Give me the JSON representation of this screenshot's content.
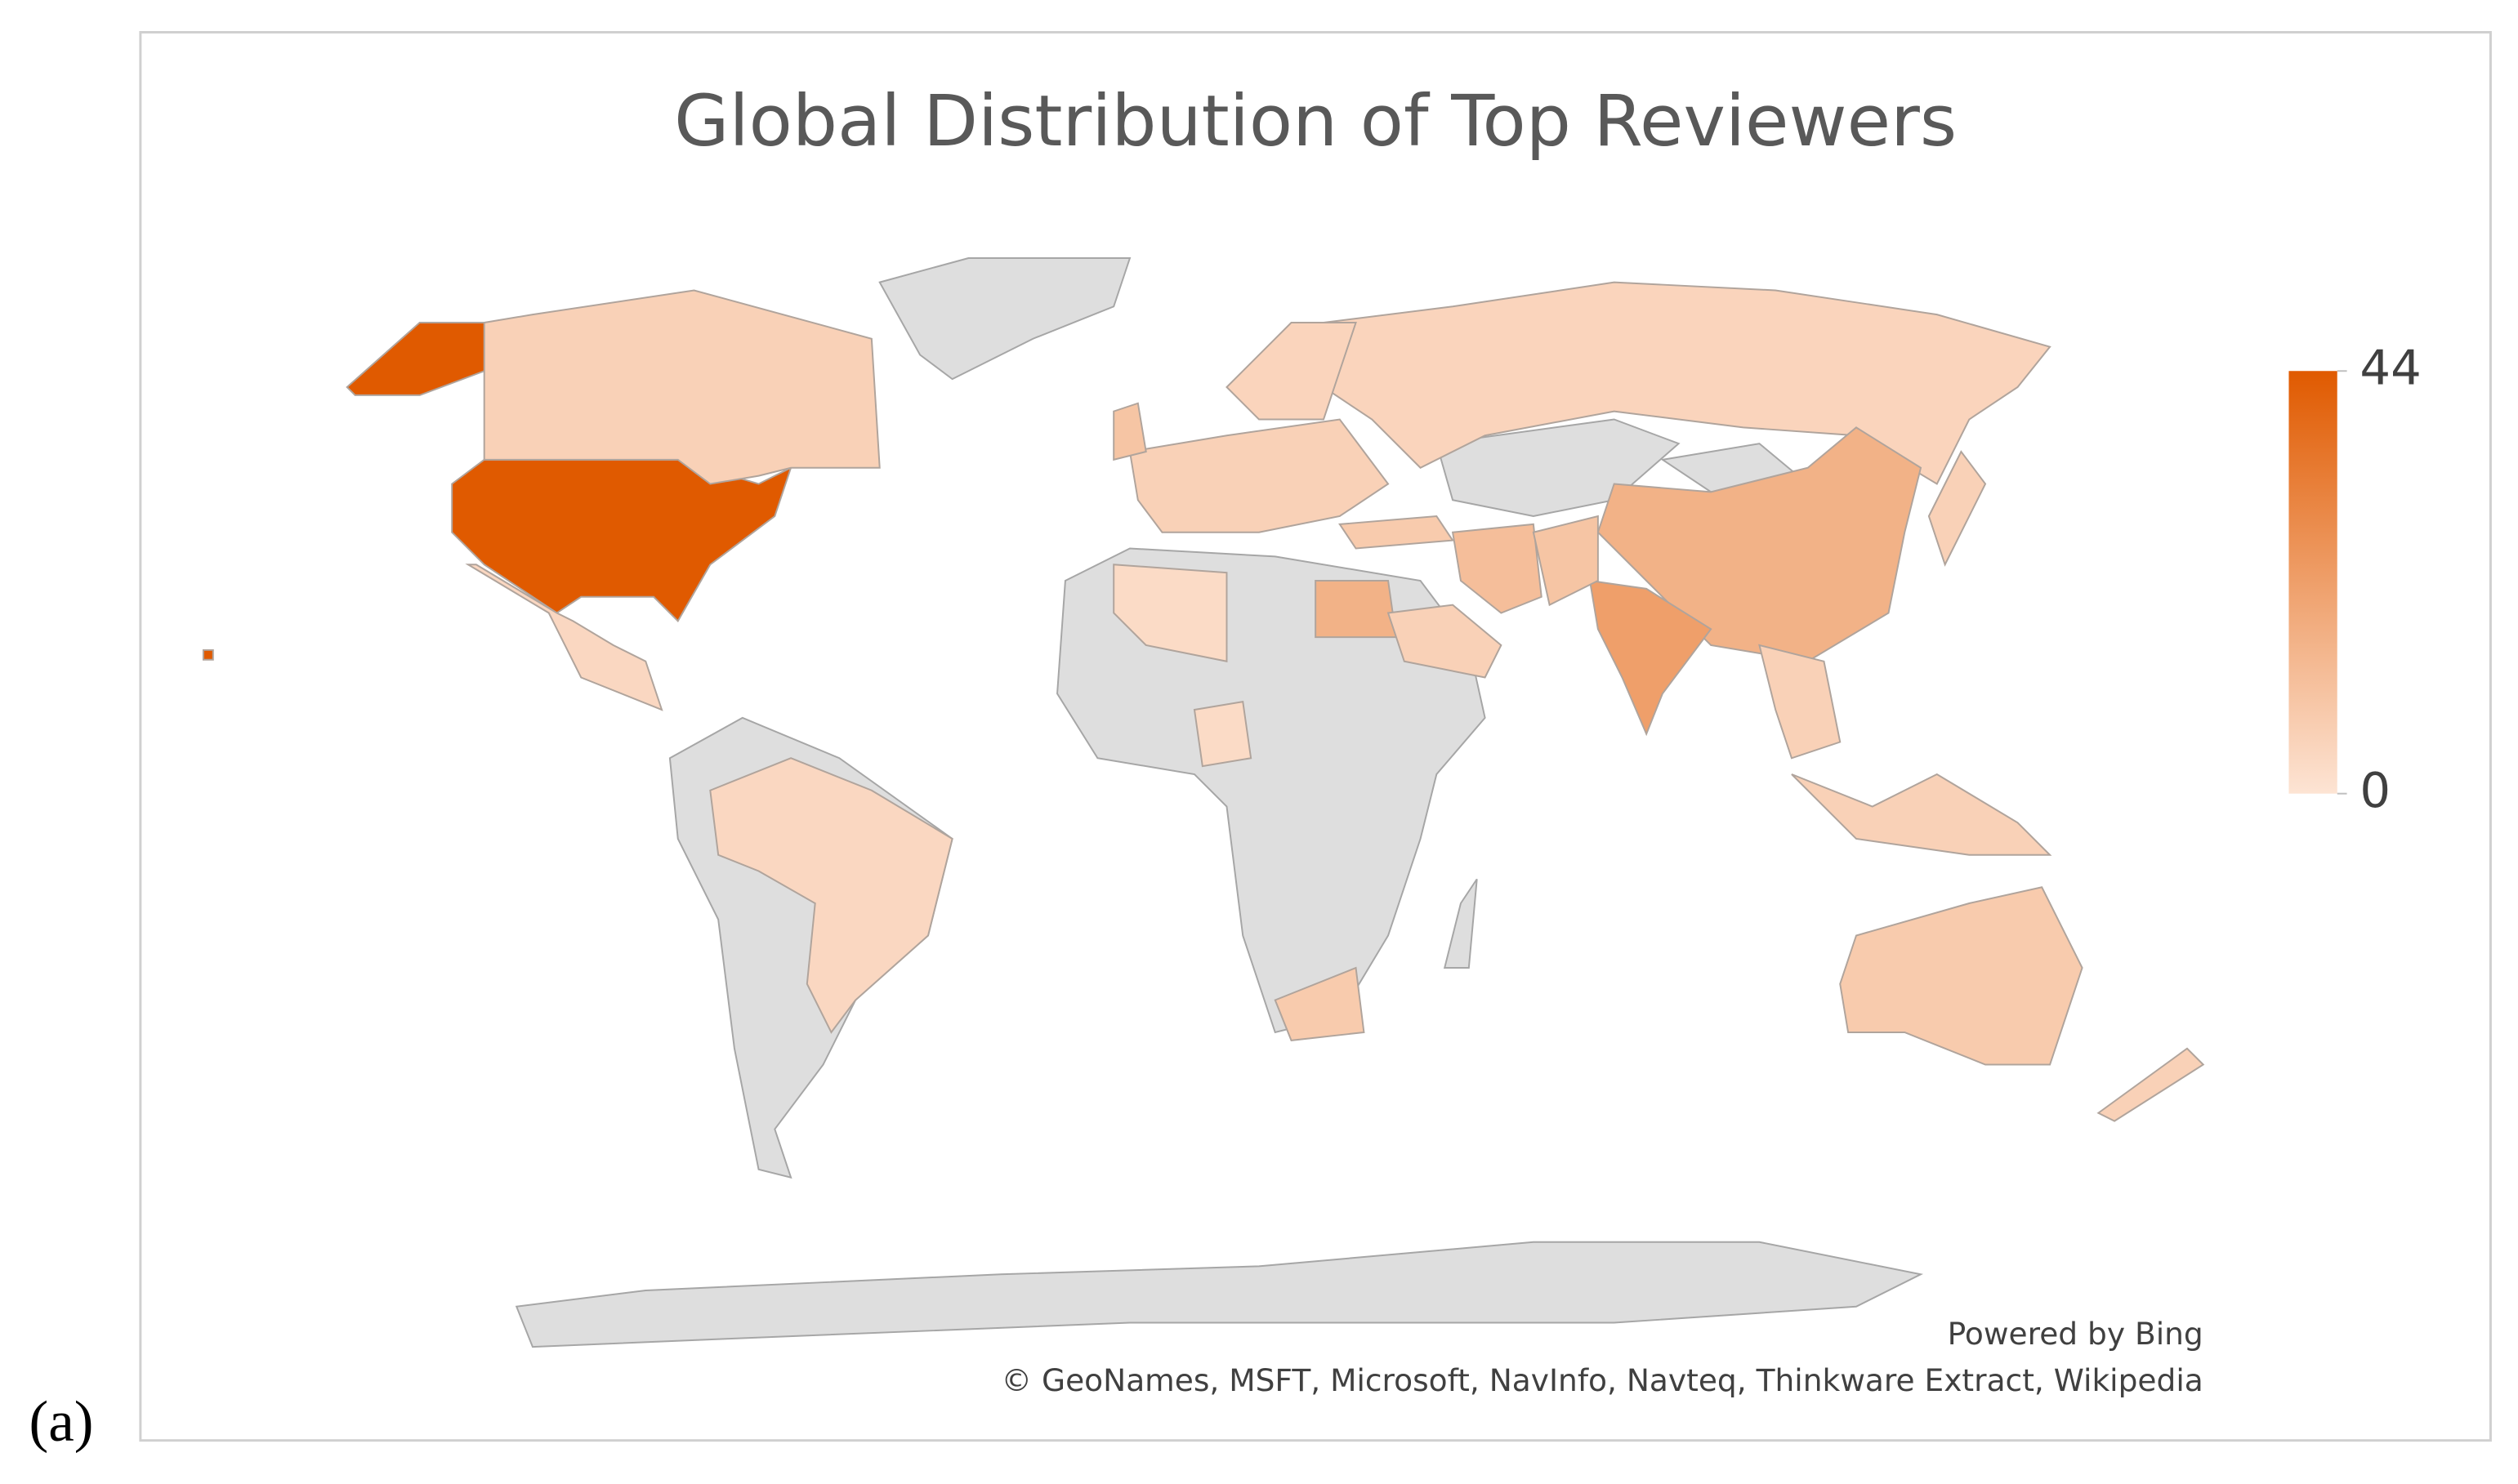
{
  "chart_data": {
    "type": "choropleth",
    "title": "Global Distribution of Top Reviewers",
    "values": [
      44,
      6,
      4,
      4,
      5,
      16,
      22,
      16,
      12,
      8,
      6,
      5,
      8,
      6,
      8,
      3,
      6,
      6,
      6,
      6,
      3,
      10,
      10
    ],
    "scale": {
      "min": 0,
      "max": 44,
      "ticks": [
        0,
        44
      ],
      "colors": [
        "#fde4d4",
        "#e05a00"
      ]
    },
    "credits": [
      "Powered by Bing",
      "© GeoNames, MSFT, Microsoft, NavInfo, Navteq, Thinkware Extract, Wikipedia"
    ],
    "panel_label": "(a)"
  }
}
